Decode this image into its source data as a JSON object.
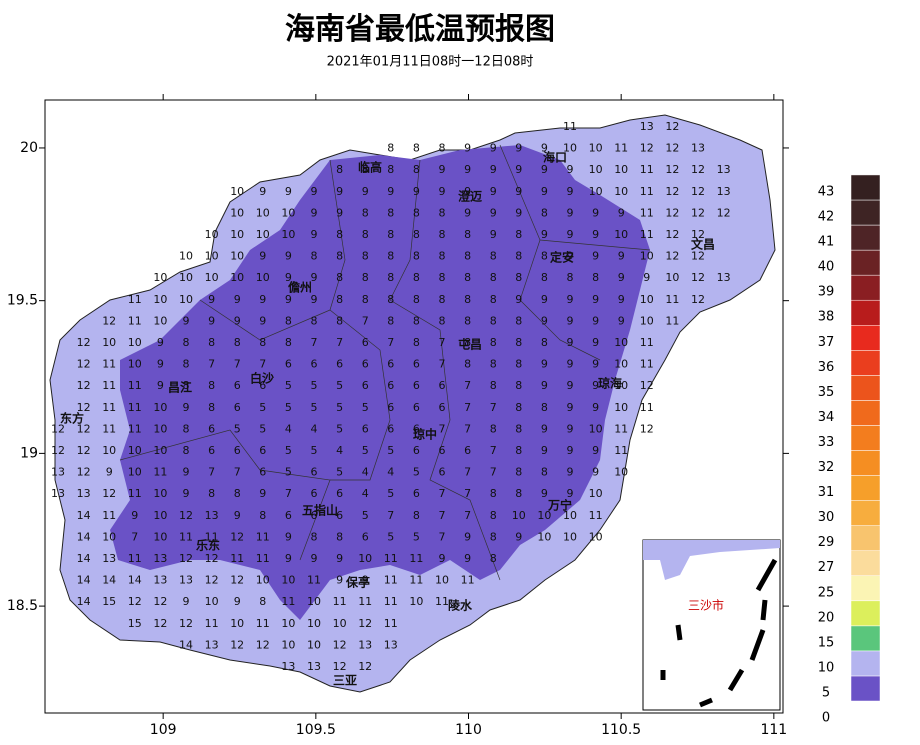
{
  "header": {
    "title": "海南省最低温预报图",
    "subtitle": "2021年01月11日08时一12日08时"
  },
  "map": {
    "xlim": [
      108.613,
      111.03
    ],
    "ylim": [
      18.15,
      20.157
    ],
    "xticks": [
      109,
      109.5,
      110,
      110.5,
      111
    ],
    "yticks": [
      18.5,
      19,
      19.5,
      20
    ],
    "cities": [
      "临高",
      "澄迈",
      "海口",
      "定安",
      "文昌",
      "儋州",
      "屯昌",
      "琼海",
      "白沙",
      "昌江",
      "东方",
      "琼中",
      "万宁",
      "五指山",
      "乐东",
      "保亭",
      "陵水",
      "三亚"
    ],
    "inset_label": "三沙市",
    "rows": [
      [
        null,
        null,
        null,
        null,
        null,
        null,
        null,
        null,
        null,
        null,
        null,
        null,
        null,
        null,
        null,
        null,
        null,
        null,
        null,
        null,
        11,
        null,
        null,
        13,
        12
      ],
      [
        null,
        null,
        null,
        null,
        null,
        null,
        null,
        null,
        null,
        null,
        null,
        null,
        null,
        8,
        8,
        8,
        9,
        9,
        9,
        9,
        10,
        10,
        11,
        12,
        12,
        13
      ],
      [
        null,
        null,
        null,
        null,
        null,
        null,
        null,
        null,
        null,
        null,
        null,
        8,
        8,
        8,
        8,
        9,
        9,
        9,
        9,
        9,
        9,
        10,
        10,
        11,
        12,
        12,
        13
      ],
      [
        null,
        null,
        null,
        null,
        null,
        null,
        null,
        10,
        9,
        9,
        9,
        9,
        9,
        9,
        9,
        9,
        9,
        9,
        9,
        9,
        9,
        10,
        10,
        11,
        12,
        12,
        13
      ],
      [
        null,
        null,
        null,
        null,
        null,
        null,
        null,
        10,
        10,
        10,
        9,
        9,
        8,
        8,
        8,
        8,
        9,
        9,
        9,
        8,
        9,
        9,
        9,
        11,
        12,
        12,
        12
      ],
      [
        null,
        null,
        null,
        null,
        null,
        null,
        10,
        10,
        10,
        10,
        9,
        8,
        8,
        8,
        8,
        8,
        8,
        9,
        8,
        9,
        9,
        9,
        10,
        11,
        12,
        12
      ],
      [
        null,
        null,
        null,
        null,
        null,
        10,
        10,
        10,
        9,
        9,
        8,
        8,
        8,
        8,
        8,
        8,
        8,
        8,
        8,
        8,
        9,
        9,
        9,
        10,
        12,
        12
      ],
      [
        null,
        null,
        null,
        null,
        10,
        10,
        10,
        10,
        10,
        9,
        9,
        8,
        8,
        8,
        8,
        8,
        8,
        8,
        8,
        8,
        8,
        8,
        9,
        9,
        10,
        12,
        13
      ],
      [
        null,
        null,
        null,
        11,
        10,
        10,
        9,
        9,
        9,
        9,
        9,
        8,
        8,
        8,
        8,
        8,
        8,
        8,
        9,
        9,
        9,
        9,
        9,
        10,
        11,
        12
      ],
      [
        null,
        null,
        12,
        11,
        10,
        9,
        9,
        9,
        9,
        8,
        8,
        8,
        7,
        8,
        8,
        8,
        8,
        8,
        8,
        9,
        9,
        9,
        9,
        10,
        11
      ],
      [
        null,
        12,
        10,
        10,
        9,
        8,
        8,
        8,
        8,
        8,
        7,
        7,
        6,
        7,
        8,
        7,
        8,
        8,
        8,
        8,
        9,
        9,
        10,
        11
      ],
      [
        null,
        12,
        11,
        10,
        9,
        8,
        7,
        7,
        7,
        6,
        6,
        6,
        6,
        6,
        6,
        7,
        8,
        8,
        8,
        9,
        9,
        9,
        10,
        11
      ],
      [
        null,
        12,
        11,
        11,
        9,
        8,
        8,
        6,
        6,
        5,
        5,
        5,
        6,
        6,
        6,
        6,
        7,
        8,
        8,
        9,
        9,
        9,
        10,
        12
      ],
      [
        null,
        12,
        11,
        11,
        10,
        9,
        8,
        6,
        5,
        5,
        5,
        5,
        5,
        6,
        6,
        6,
        7,
        7,
        8,
        8,
        9,
        9,
        10,
        11
      ],
      [
        12,
        12,
        11,
        11,
        10,
        8,
        6,
        5,
        5,
        4,
        4,
        5,
        6,
        6,
        6,
        7,
        7,
        8,
        8,
        9,
        9,
        10,
        11,
        12
      ],
      [
        12,
        12,
        10,
        10,
        10,
        8,
        6,
        6,
        6,
        5,
        5,
        4,
        5,
        5,
        6,
        6,
        6,
        7,
        8,
        9,
        9,
        9,
        11
      ],
      [
        13,
        12,
        9,
        10,
        11,
        9,
        7,
        7,
        6,
        5,
        6,
        5,
        4,
        4,
        5,
        6,
        7,
        7,
        8,
        8,
        9,
        9,
        10
      ],
      [
        13,
        13,
        12,
        11,
        10,
        9,
        8,
        8,
        9,
        7,
        6,
        6,
        4,
        5,
        6,
        7,
        7,
        8,
        8,
        9,
        9,
        10
      ],
      [
        null,
        14,
        11,
        9,
        10,
        12,
        13,
        9,
        8,
        6,
        6,
        6,
        5,
        7,
        8,
        7,
        7,
        8,
        10,
        10,
        10,
        11
      ],
      [
        null,
        14,
        10,
        7,
        10,
        11,
        11,
        12,
        11,
        9,
        8,
        8,
        6,
        5,
        5,
        7,
        9,
        8,
        9,
        10,
        10,
        10
      ],
      [
        null,
        14,
        13,
        11,
        13,
        12,
        12,
        11,
        11,
        9,
        9,
        9,
        10,
        11,
        11,
        9,
        9,
        8
      ],
      [
        null,
        14,
        14,
        14,
        13,
        13,
        12,
        12,
        10,
        10,
        11,
        9,
        9,
        11,
        11,
        10,
        11
      ],
      [
        null,
        14,
        15,
        12,
        12,
        9,
        10,
        9,
        8,
        11,
        10,
        11,
        11,
        11,
        10,
        11
      ],
      [
        null,
        null,
        null,
        15,
        12,
        12,
        11,
        10,
        11,
        10,
        10,
        10,
        12,
        11
      ],
      [
        null,
        null,
        null,
        null,
        null,
        14,
        13,
        12,
        12,
        10,
        10,
        12,
        13,
        13
      ],
      [
        null,
        null,
        null,
        null,
        null,
        null,
        null,
        null,
        null,
        13,
        13,
        12,
        12
      ]
    ]
  },
  "legend": {
    "labels": [
      0,
      5,
      10,
      15,
      20,
      25,
      27,
      29,
      30,
      31,
      32,
      33,
      34,
      35,
      36,
      37,
      38,
      39,
      40,
      41,
      42,
      43
    ],
    "colors": [
      "#6a52c6",
      "#b4b4ef",
      "#5ac67c",
      "#dcef5c",
      "#fbf4b4",
      "#fbdc9c",
      "#f8c46e",
      "#f7ad3e",
      "#f69f2a",
      "#f58e22",
      "#f37d1e",
      "#f06a1c",
      "#ec541c",
      "#ea3e1e",
      "#e82a1e",
      "#b81c1c",
      "#8a1e22",
      "#6a2224",
      "#4e2426",
      "#3e2424",
      "#342020"
    ]
  }
}
